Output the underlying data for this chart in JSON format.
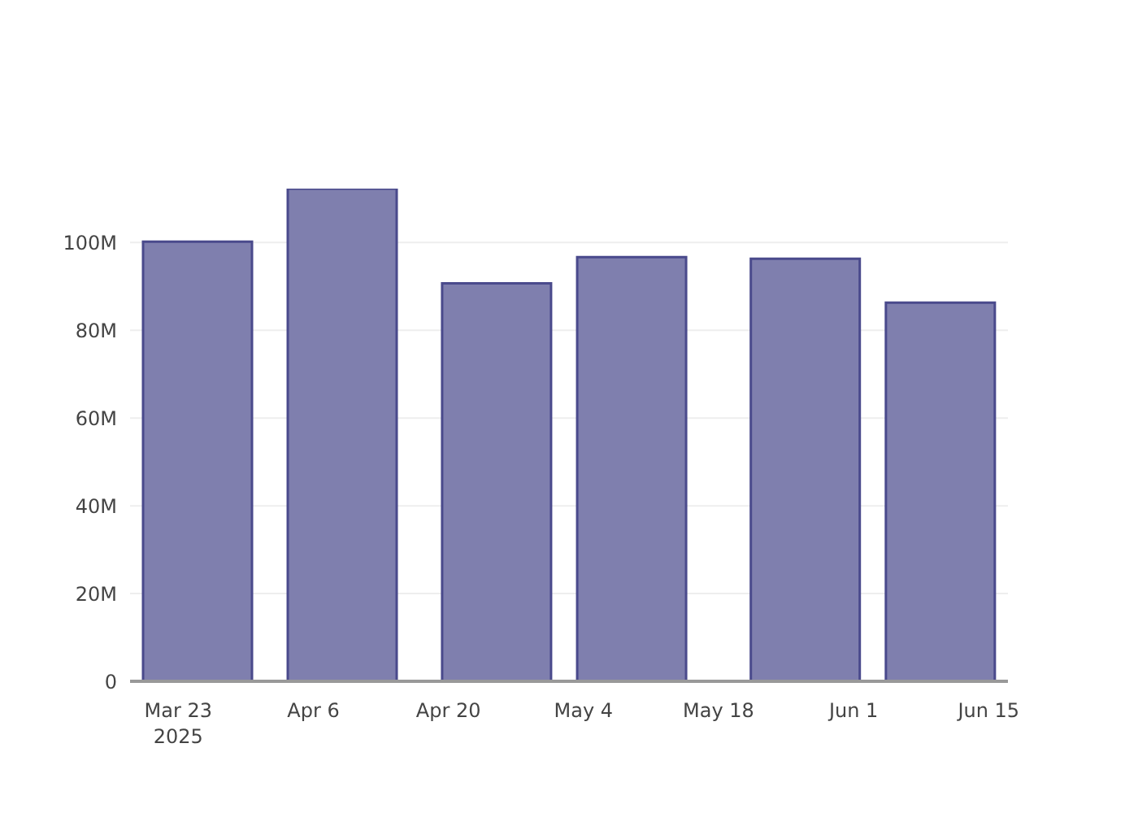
{
  "chart_data": {
    "type": "bar",
    "x": [
      "2025-03-25",
      "2025-04-09",
      "2025-04-25",
      "2025-05-09",
      "2025-05-27",
      "2025-06-10"
    ],
    "values": [
      100200000,
      112300000,
      90700000,
      96700000,
      96300000,
      86300000
    ],
    "color": "#7f7fae",
    "xlim": [
      "2025-03-18",
      "2025-06-17"
    ],
    "xticks": [
      {
        "value": "2025-03-23",
        "label": "Mar 23\n2025"
      },
      {
        "value": "2025-04-06",
        "label": "Apr 6"
      },
      {
        "value": "2025-04-20",
        "label": "Apr 20"
      },
      {
        "value": "2025-05-04",
        "label": "May 4"
      },
      {
        "value": "2025-05-18",
        "label": "May 18"
      },
      {
        "value": "2025-06-01",
        "label": "Jun 1"
      },
      {
        "value": "2025-06-15",
        "label": "Jun 15"
      }
    ],
    "yticks": [
      {
        "value": 0,
        "label": "0"
      },
      {
        "value": 20000000,
        "label": "20M"
      },
      {
        "value": 40000000,
        "label": "40M"
      },
      {
        "value": 60000000,
        "label": "60M"
      },
      {
        "value": 80000000,
        "label": "80M"
      },
      {
        "value": 100000000,
        "label": "100M"
      }
    ],
    "ylim": [
      0,
      112300000
    ],
    "grid": "y"
  }
}
